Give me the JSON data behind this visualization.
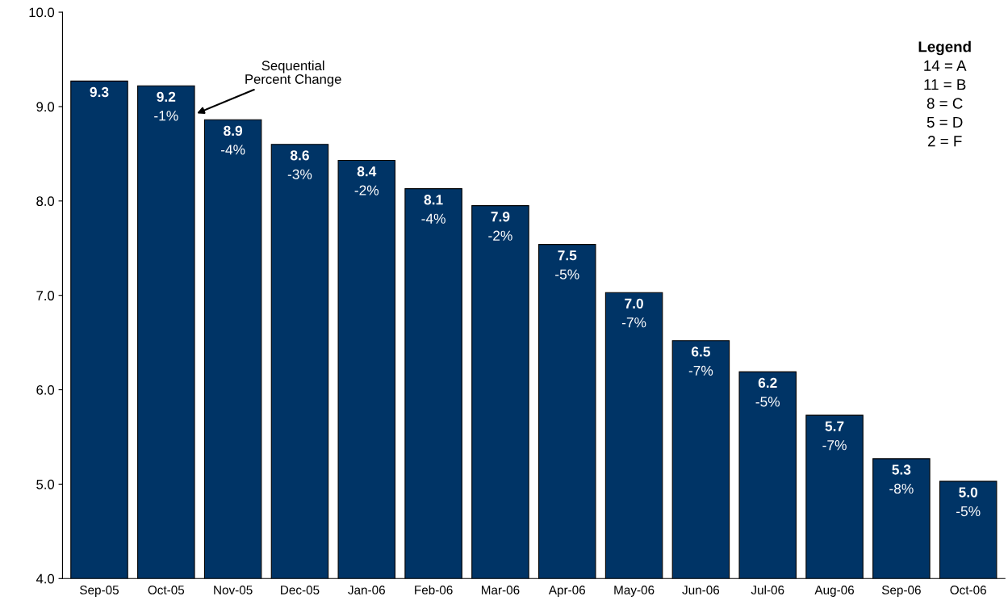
{
  "chart_data": {
    "type": "bar",
    "categories": [
      "Sep-05",
      "Oct-05",
      "Nov-05",
      "Dec-05",
      "Jan-06",
      "Feb-06",
      "Mar-06",
      "Apr-06",
      "May-06",
      "Jun-06",
      "Jul-06",
      "Aug-06",
      "Sep-06",
      "Oct-06"
    ],
    "values": [
      9.27,
      9.22,
      8.86,
      8.6,
      8.43,
      8.13,
      7.95,
      7.54,
      7.03,
      6.52,
      6.19,
      5.73,
      5.27,
      5.03
    ],
    "value_labels": [
      "9.3",
      "9.2",
      "8.9",
      "8.6",
      "8.4",
      "8.1",
      "7.9",
      "7.5",
      "7.0",
      "6.5",
      "6.2",
      "5.7",
      "5.3",
      "5.0"
    ],
    "color": "#003466",
    "ylim": [
      4,
      10
    ],
    "yticks": [
      {
        "value": 4,
        "label": "4.0"
      },
      {
        "value": 5,
        "label": "5.0"
      },
      {
        "value": 6,
        "label": "6.0"
      },
      {
        "value": 7,
        "label": "7.0"
      },
      {
        "value": 8,
        "label": "8.0"
      },
      {
        "value": 9,
        "label": "9.0"
      },
      {
        "value": 10,
        "label": "10.0"
      }
    ],
    "grid": false,
    "legend": false,
    "annotations": [
      "-1%",
      "-4%",
      "-3%",
      "-2%",
      "-4%",
      "-2%",
      "-5%",
      "-7%",
      "-7%",
      "-5%",
      "-7%",
      "-8%",
      "-5%",
      "Sequential\nPercent Change",
      "Legend",
      "14 = A",
      "11 = B",
      "8 = C",
      "5 = D",
      "2 = F"
    ]
  }
}
